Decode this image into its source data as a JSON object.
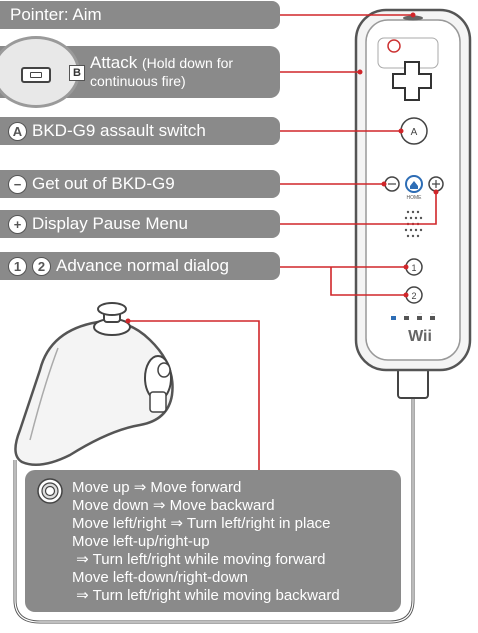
{
  "labels": {
    "pointer": "Pointer: Aim",
    "attack_main": "Attack",
    "attack_note": "(Hold down for continuous fire)",
    "attack_button": "B",
    "a_button": "A",
    "a_text": "BKD-G9 assault switch",
    "minus_button": "−",
    "minus_text": "Get out of BKD-G9",
    "plus_button": "+",
    "plus_text": "Display Pause Menu",
    "one_button": "1",
    "two_button": "2",
    "onetwo_text": "Advance normal dialog"
  },
  "nunchuk_info": [
    "Move up ⇒ Move forward",
    "Move down ⇒ Move backward",
    "Move left/right ⇒ Turn left/right in place",
    "Move left-up/right-up",
    " ⇒ Turn left/right while moving forward",
    "Move left-down/right-down",
    " ⇒ Turn left/right while moving backward"
  ],
  "remote": {
    "home_label": "HOME",
    "brand": "Wii",
    "a_label": "A",
    "btn1": "1",
    "btn2": "2",
    "led_labels": [
      ".",
      "..",
      "...",
      "...."
    ]
  },
  "colors": {
    "label_bg": "#8a8a8a",
    "callout_line": "#d0262a"
  }
}
